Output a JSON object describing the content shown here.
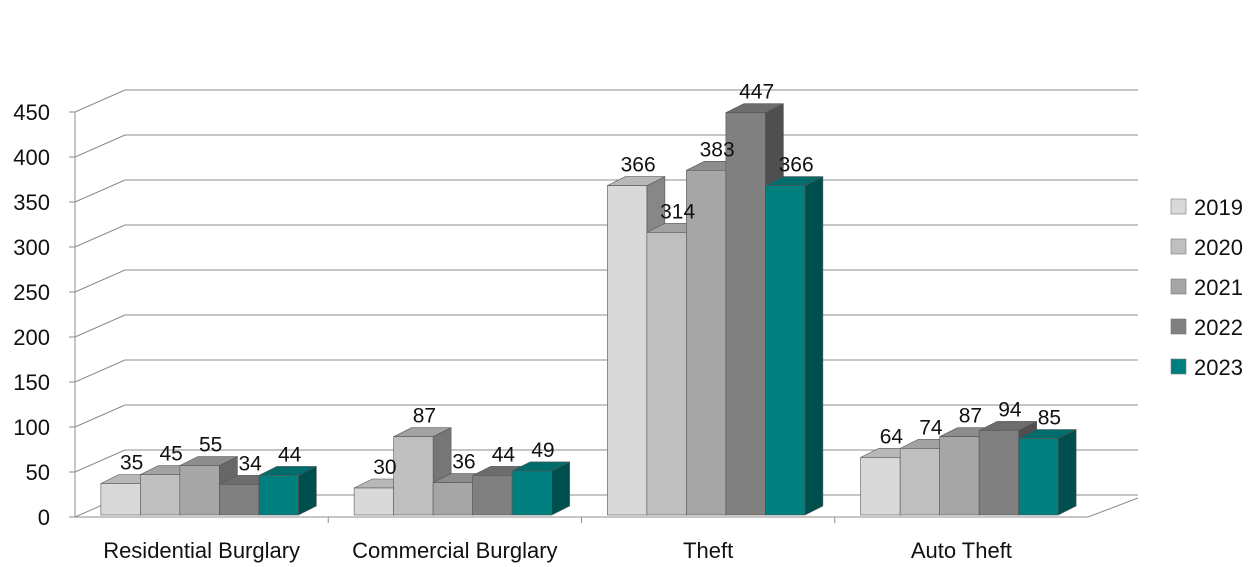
{
  "chart_data": {
    "type": "bar",
    "categories": [
      "Residential Burglary",
      "Commercial Burglary",
      "Theft",
      "Auto Theft"
    ],
    "series": [
      {
        "name": "2019",
        "values": [
          35,
          30,
          366,
          64
        ],
        "color": "#d9d9d9"
      },
      {
        "name": "2020",
        "values": [
          45,
          87,
          314,
          74
        ],
        "color": "#bfbfbf"
      },
      {
        "name": "2021",
        "values": [
          55,
          36,
          383,
          87
        ],
        "color": "#a6a6a6"
      },
      {
        "name": "2022",
        "values": [
          34,
          44,
          447,
          94
        ],
        "color": "#808080"
      },
      {
        "name": "2023",
        "values": [
          44,
          49,
          366,
          85
        ],
        "color": "#007f7f"
      }
    ],
    "yticks": [
      "0",
      "50",
      "100",
      "150",
      "200",
      "250",
      "300",
      "350",
      "400",
      "450"
    ],
    "ylim": [
      0,
      450
    ],
    "grid": true,
    "legend_position": "right",
    "style": "3d-clustered-column"
  }
}
